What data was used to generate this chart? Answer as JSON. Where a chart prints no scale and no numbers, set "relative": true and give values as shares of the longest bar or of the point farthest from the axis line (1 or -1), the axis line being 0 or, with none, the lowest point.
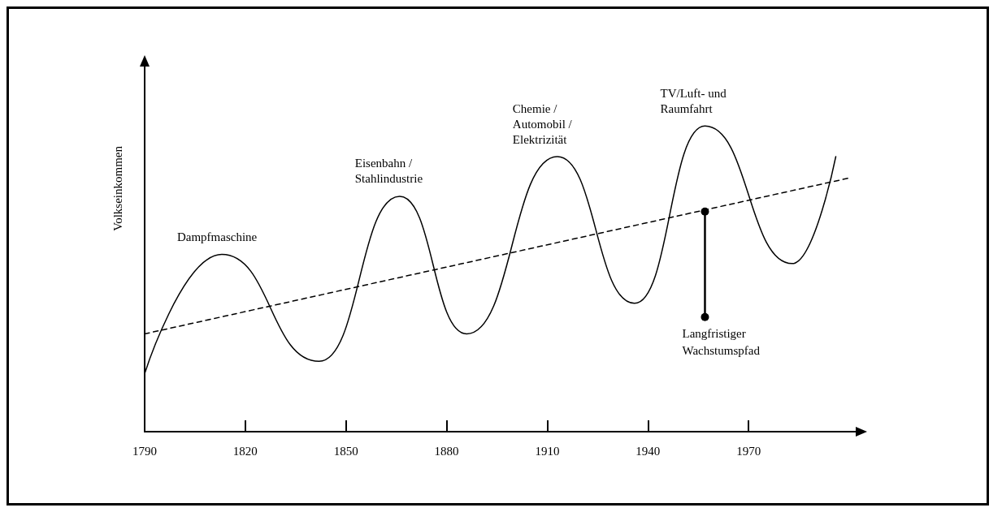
{
  "chart_data": {
    "type": "line",
    "ylabel": "Volkseinkommen",
    "relative": true,
    "xlim": [
      1790,
      2000
    ],
    "xticks": [
      1790,
      1820,
      1850,
      1880,
      1910,
      1940,
      1970
    ],
    "grid": false,
    "marker": "none",
    "series": [
      {
        "color": "#000000",
        "line_style": "solid",
        "x": [
          1790,
          1813,
          1842,
          1866,
          1886,
          1913,
          1936,
          1957,
          1983,
          1996
        ],
        "values": [
          0.19,
          0.58,
          0.23,
          0.77,
          0.32,
          0.9,
          0.42,
          1.0,
          0.55,
          0.9
        ]
      },
      {
        "color": "#000000",
        "line_style": "dashed",
        "x": [
          1790,
          2000
        ],
        "values": [
          0.32,
          0.83
        ]
      }
    ],
    "annotations": [
      {
        "text": "Dampfmaschine",
        "x": 1813,
        "y": 0.58
      },
      {
        "text": "Eisenbahn /\nStahlindustrie",
        "x": 1866,
        "y": 0.77
      },
      {
        "text": "Chemie /\nAutomobil /\nElektrizität",
        "x": 1913,
        "y": 0.9
      },
      {
        "text": "TV/Luft- und\nRaumfahrt",
        "x": 1957,
        "y": 1.0
      },
      "Langfristiger\nWachstumspfad"
    ]
  }
}
